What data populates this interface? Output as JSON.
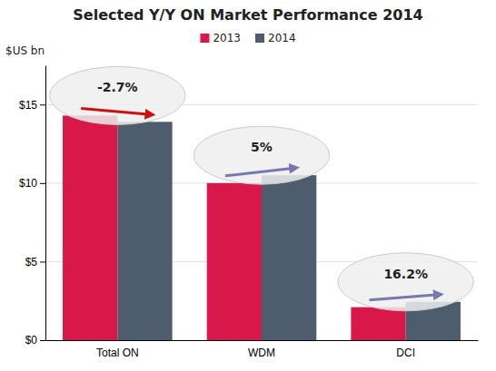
{
  "chart_data": {
    "type": "bar",
    "title": "Selected Y/Y ON Market Performance 2014",
    "categories": [
      "Total ON",
      "WDM",
      "DCI"
    ],
    "series": [
      {
        "name": "2013",
        "color": "#d81848",
        "values": [
          14.3,
          10.0,
          2.1
        ]
      },
      {
        "name": "2014",
        "color": "#4d5d6e",
        "values": [
          13.9,
          10.5,
          2.44
        ]
      }
    ],
    "ylabel": "$US bn",
    "ylim": [
      0,
      17.5
    ],
    "yticks": [
      {
        "value": 0,
        "label": "$0"
      },
      {
        "value": 5,
        "label": "$5"
      },
      {
        "value": 10,
        "label": "$10"
      },
      {
        "value": 15,
        "label": "$15"
      }
    ],
    "grid": true,
    "legend": "top",
    "annotations": [
      {
        "text": "-2.7%",
        "color": "#cc1111"
      },
      {
        "text": "5%",
        "color": "#7878b0"
      },
      {
        "text": "16.2%",
        "color": "#7878b0"
      }
    ]
  }
}
